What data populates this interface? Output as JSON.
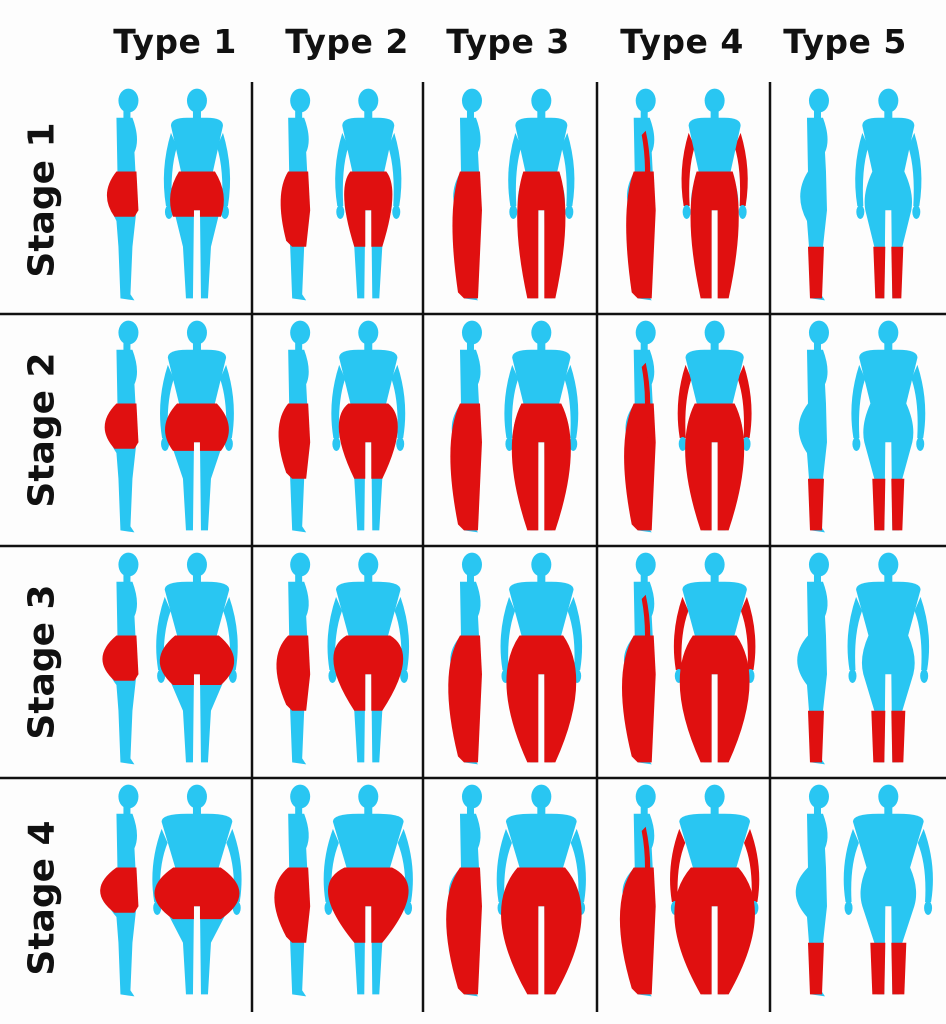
{
  "column_headers": [
    "Type 1",
    "Type 2",
    "Type 3",
    "Type 4",
    "Type 5"
  ],
  "row_headers": [
    "Stage 1",
    "Stage 2",
    "Stage 3",
    "Stage 4"
  ],
  "colors": {
    "body": "#29c6f2",
    "fat": "#e01010",
    "grid_line": "#111111",
    "background": "#fdfdfd"
  },
  "fat_distribution": {
    "Type 1": "hips and upper thighs",
    "Type 2": "hips and thighs to the knees",
    "Type 3": "hips and entire legs",
    "Type 4": "arms, hips and entire legs",
    "Type 5": "lower legs only"
  }
}
